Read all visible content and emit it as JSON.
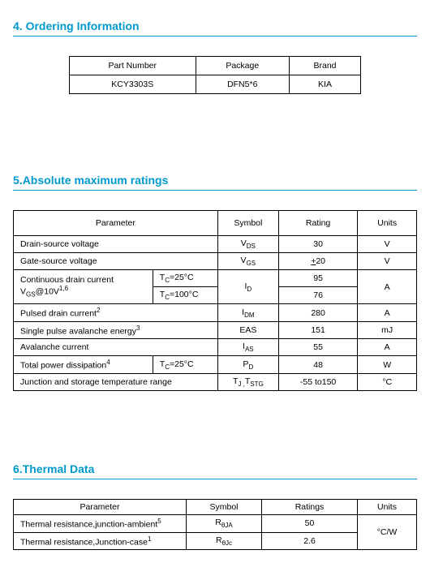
{
  "sections": {
    "ordering": {
      "num": "4.",
      "title": "Ordering Information"
    },
    "maxratings": {
      "num": "5.",
      "title": "Absolute maximum ratings"
    },
    "thermal": {
      "num": "6.",
      "title": "Thermal Data"
    }
  },
  "ordering": {
    "headers": [
      "Part Number",
      "Package",
      "Brand"
    ],
    "row": [
      "KCY3303S",
      "DFN5*6",
      "KIA"
    ]
  },
  "maxratings": {
    "headers": [
      "Parameter",
      "Symbol",
      "Rating",
      "Units"
    ],
    "rows": {
      "r1": {
        "param": "Drain-source voltage",
        "sym_html": "V<sub>DS</sub>",
        "rating": "30",
        "units": "V"
      },
      "r2": {
        "param": "Gate-source voltage",
        "sym_html": "V<sub>GS</sub>",
        "rating_html": "<u>+</u>20",
        "units": "V"
      },
      "r3": {
        "param_html": "Continuous drain current V<sub>GS</sub>@10V<sup>1,6</sup>",
        "cond1_html": "T<sub>C</sub>=25°C",
        "cond2_html": "T<sub>C</sub>=100°C",
        "sym_html": "I<sub>D</sub>",
        "rating1": "95",
        "rating2": "76",
        "units": "A"
      },
      "r4": {
        "param_html": "Pulsed drain current<sup>2</sup>",
        "sym_html": "I<sub>DM</sub>",
        "rating": "280",
        "units": "A"
      },
      "r5": {
        "param_html": "Single pulse avalanche energy<sup>3</sup>",
        "sym": "EAS",
        "rating": "151",
        "units": "mJ"
      },
      "r6": {
        "param": "Avalanche current",
        "sym_html": "I<sub>AS</sub>",
        "rating": "55",
        "units": "A"
      },
      "r7": {
        "param_html": "Total power dissipation<sup>4</sup>",
        "cond_html": "T<sub>C</sub>=25°C",
        "sym_html": "P<sub>D</sub>",
        "rating": "48",
        "units": "W"
      },
      "r8": {
        "param": "Junction and storage temperature range",
        "sym_html": "T<sub>J ,</sub>T<sub>STG</sub>",
        "rating": "-55 to150",
        "units": "°C"
      }
    }
  },
  "thermal": {
    "headers": [
      "Parameter",
      "Symbol",
      "Ratings",
      "Units"
    ],
    "rows": {
      "r1": {
        "param_html": "Thermal resistance,junction-ambient<sup>5</sup>",
        "sym_html": "R<sub>θJA</sub>",
        "rating": "50",
        "units": "°C/W"
      },
      "r2": {
        "param_html": "Thermal resistance,Junction-case<sup>1</sup>",
        "sym_html": "R<sub>θJc</sub>",
        "rating": "2.6"
      }
    }
  }
}
